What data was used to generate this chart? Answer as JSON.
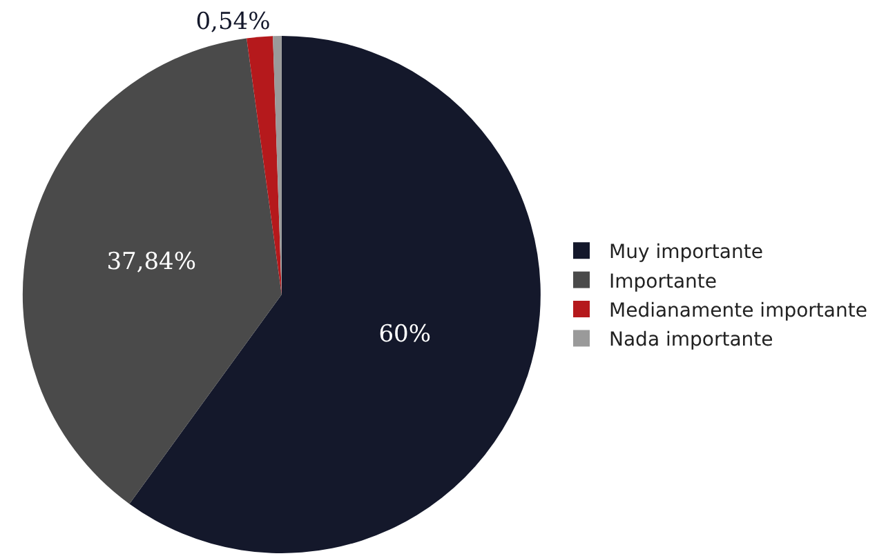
{
  "chart_data": {
    "type": "pie",
    "categories": [
      "Muy importante",
      "Importante",
      "Medianamente importante",
      "Nada importante"
    ],
    "values": [
      60,
      37.84,
      1.62,
      0.54
    ],
    "colors": [
      "#14182b",
      "#4a4a4a",
      "#b5191c",
      "#9a9a9a"
    ],
    "value_labels": [
      "60%",
      "37,84%",
      null,
      "0,54%"
    ],
    "legend": "right"
  }
}
